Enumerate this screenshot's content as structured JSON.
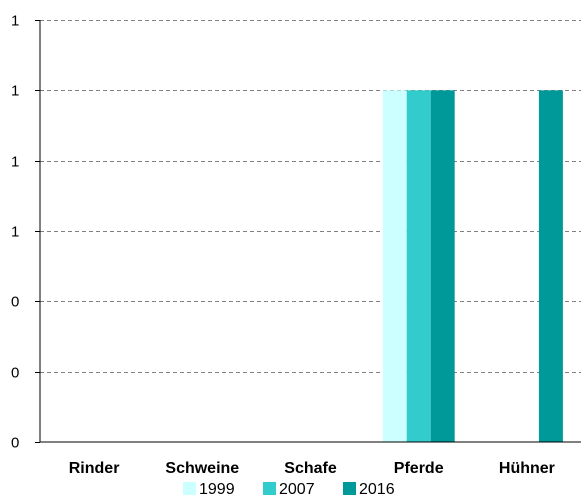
{
  "chart_data": {
    "type": "bar",
    "title": "",
    "xlabel": "",
    "ylabel": "",
    "categories": [
      "Rinder",
      "Schweine",
      "Schafe",
      "Pferde",
      "Hühner"
    ],
    "series": [
      {
        "name": "1999",
        "values": [
          0,
          0,
          0,
          1,
          0
        ],
        "color": "#ccffff"
      },
      {
        "name": "2007",
        "values": [
          0,
          0,
          0,
          1,
          0
        ],
        "color": "#33cccc"
      },
      {
        "name": "2016",
        "values": [
          0,
          0,
          0,
          1,
          1
        ],
        "color": "#009999"
      }
    ],
    "ylim": [
      0,
      1.2
    ],
    "y_ticks": [
      0,
      0.2,
      0.4,
      0.6,
      0.8,
      1.0,
      1.2
    ],
    "y_tick_labels": [
      "0",
      "0",
      "0",
      "1",
      "1",
      "1",
      "1"
    ],
    "grid": true,
    "grid_style": "dashed",
    "legend_position": "bottom"
  }
}
